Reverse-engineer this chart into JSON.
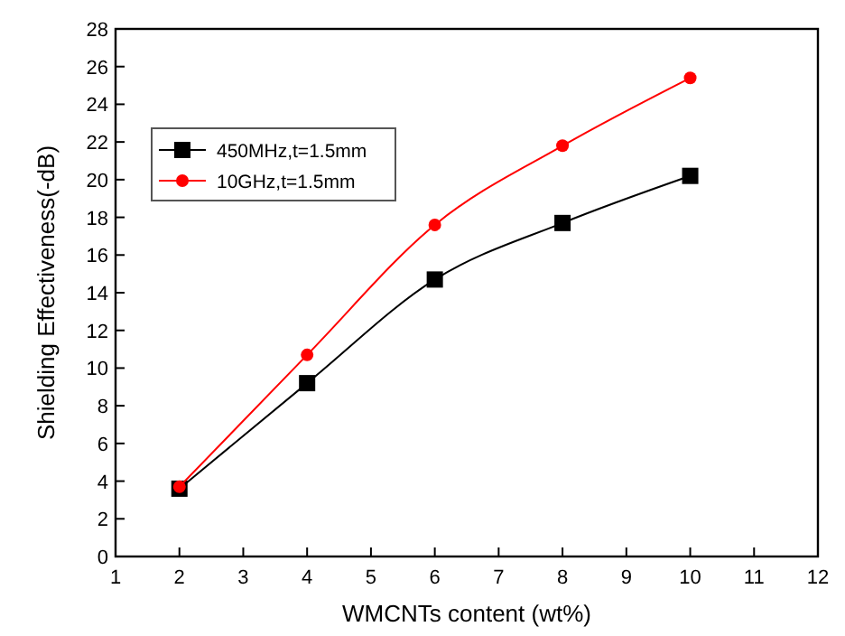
{
  "chart_data": {
    "type": "line",
    "xlabel": "WMCNTs content (wt%)",
    "ylabel": "Shielding Effectiveness(-dB)",
    "x": [
      2,
      4,
      6,
      8,
      10
    ],
    "series": [
      {
        "name": "450MHz,t=1.5mm",
        "color": "#000000",
        "marker": "square",
        "values": [
          3.6,
          9.2,
          14.7,
          17.7,
          20.2
        ]
      },
      {
        "name": "10GHz,t=1.5mm",
        "color": "#ff0000",
        "marker": "circle",
        "values": [
          3.7,
          10.7,
          17.6,
          21.8,
          25.4
        ]
      }
    ],
    "xlim": [
      1,
      12
    ],
    "xticks": [
      1,
      2,
      3,
      4,
      5,
      6,
      7,
      8,
      9,
      10,
      11,
      12
    ],
    "ylim": [
      0,
      28
    ],
    "yticks": [
      0,
      2,
      4,
      6,
      8,
      10,
      12,
      14,
      16,
      18,
      20,
      22,
      24,
      26,
      28
    ],
    "legend": "top left",
    "grid": false,
    "line_style": "solid"
  }
}
